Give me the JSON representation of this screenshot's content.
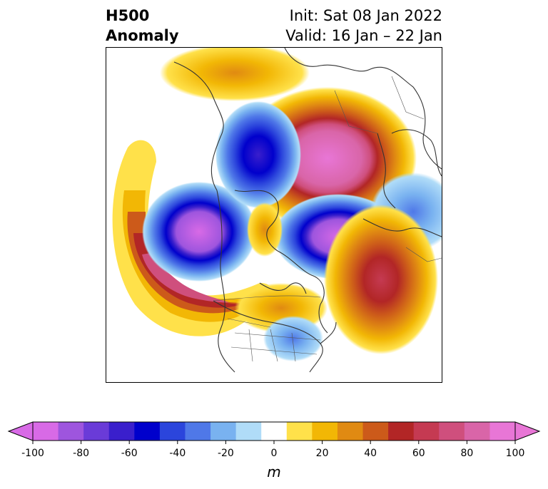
{
  "title": {
    "left_line1": "H500",
    "left_line2": "Anomaly",
    "right_line1": "Init: Sat 08 Jan 2022",
    "right_line2": "Valid: 16 Jan – 22 Jan"
  },
  "colorbar": {
    "unit": "m",
    "min": -100,
    "max": 100,
    "step": 10,
    "tick_labels": [
      "-100",
      "-80",
      "-60",
      "-40",
      "-20",
      "0",
      "20",
      "40",
      "60",
      "80",
      "100"
    ],
    "tick_values": [
      -100,
      -80,
      -60,
      -40,
      -20,
      0,
      20,
      40,
      60,
      80,
      100
    ],
    "colors": [
      "#d86ae6",
      "#9e55de",
      "#6a3bd8",
      "#3a1fcc",
      "#0000cc",
      "#2b45dc",
      "#4f78e8",
      "#79b2f0",
      "#b0dcf8",
      "#ffffff",
      "#ffe14a",
      "#f2b705",
      "#e08a12",
      "#cc5a1a",
      "#b22626",
      "#c53a52",
      "#cf4f7d",
      "#d965a8",
      "#e876d6"
    ],
    "extend_low_color": "#d86ae6",
    "extend_high_color": "#e876d6"
  },
  "map": {
    "projection": "north-polar-stereographic",
    "features": [
      "coastlines",
      "country-borders",
      "us-state-borders"
    ],
    "anomalies": [
      {
        "label": "positive-anomaly-arctic",
        "value": 100
      },
      {
        "label": "negative-anomaly-gulf-of-alaska",
        "value": -100
      },
      {
        "label": "negative-anomaly-north-atlantic",
        "value": -80
      },
      {
        "label": "negative-anomaly-eastern-siberia",
        "value": -60
      },
      {
        "label": "positive-anomaly-west-north-america",
        "value": 70
      },
      {
        "label": "positive-anomaly-east-atlantic",
        "value": 60
      },
      {
        "label": "negative-anomaly-eastern-us",
        "value": -30
      }
    ]
  }
}
